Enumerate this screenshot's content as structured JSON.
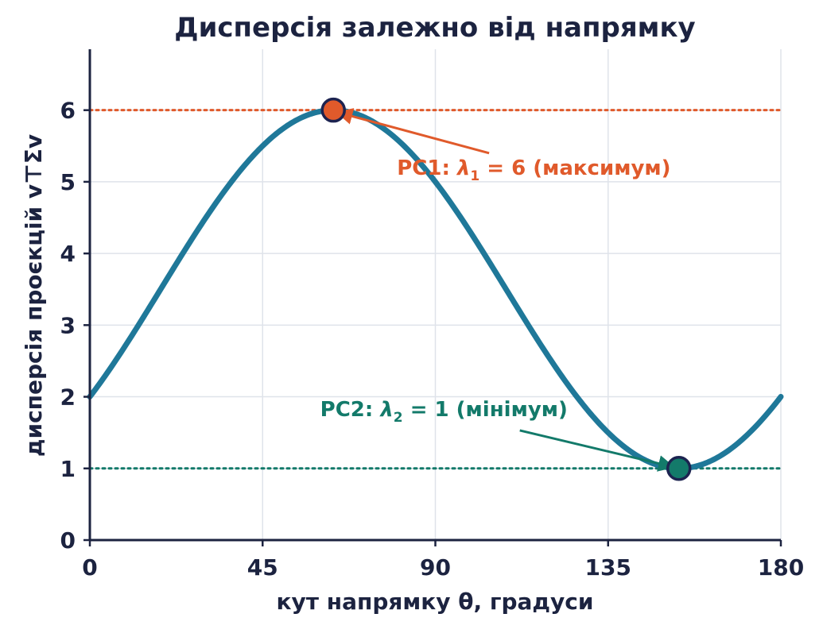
{
  "chart_data": {
    "type": "line",
    "title": "Дисперсія залежно від напрямку",
    "xlabel": "кут напрямку θ, градуси",
    "ylabel": "дисперсія проєкцій v⊤Σv",
    "xlim": [
      0,
      180
    ],
    "ylim": [
      0,
      6.85
    ],
    "xticks": [
      0,
      45,
      90,
      135,
      180
    ],
    "yticks": [
      0,
      1,
      2,
      3,
      4,
      5,
      6
    ],
    "grid": true,
    "series": [
      {
        "color": "#1f7899",
        "curve": {
          "mean": 3.5,
          "amplitude": 2.5,
          "max_at_deg": 63.43,
          "period_deg": 180
        },
        "x": [
          0,
          15,
          30,
          45,
          63.43,
          75,
          90,
          105,
          120,
          135,
          153.43,
          165,
          180
        ],
        "y": [
          2.0,
          3.25,
          4.67,
          5.5,
          6.0,
          5.8,
          5.0,
          3.75,
          2.33,
          1.5,
          1.0,
          1.2,
          2.0
        ]
      }
    ],
    "reference_lines": [
      {
        "y": 6,
        "color": "#e05a2b",
        "style": "dotted"
      },
      {
        "y": 1,
        "color": "#137a6a",
        "style": "dotted"
      }
    ],
    "points": [
      {
        "x": 63.43,
        "y": 6,
        "color": "#e05a2b"
      },
      {
        "x": 153.43,
        "y": 1,
        "color": "#137a6a"
      }
    ],
    "annotations": [
      {
        "prefix": "PC1: ",
        "symbol": "λ",
        "subscript": "1",
        "suffix": " = 6 (максимум)",
        "color": "#e05a2b",
        "x": 80,
        "y": 5.1,
        "arrow_from": [
          104,
          5.4
        ],
        "arrow_to": [
          64.5,
          5.97
        ]
      },
      {
        "prefix": "PC2: ",
        "symbol": "λ",
        "subscript": "2",
        "suffix": " = 1 (мінімум)",
        "color": "#137a6a",
        "x": 60,
        "y": 1.73,
        "arrow_from": [
          112,
          1.53
        ],
        "arrow_to": [
          152,
          1.02
        ]
      }
    ]
  }
}
